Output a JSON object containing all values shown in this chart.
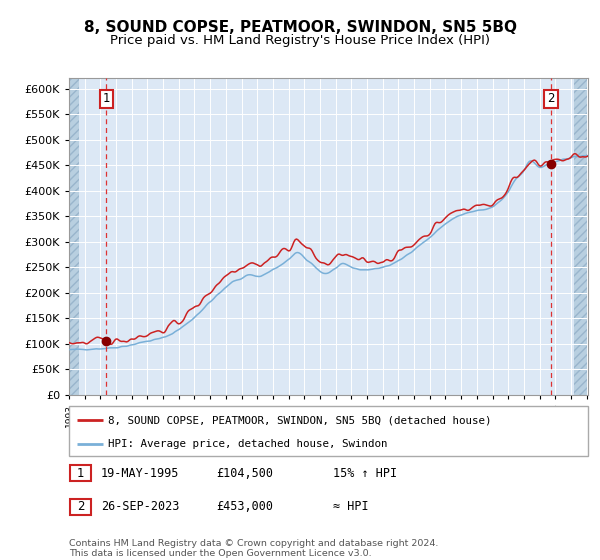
{
  "title": "8, SOUND COPSE, PEATMOOR, SWINDON, SN5 5BQ",
  "subtitle": "Price paid vs. HM Land Registry's House Price Index (HPI)",
  "sale1_date": "1995-05-19",
  "sale1_price": 104500,
  "sale2_date": "2023-09-26",
  "sale2_price": 453000,
  "legend1": "8, SOUND COPSE, PEATMOOR, SWINDON, SN5 5BQ (detached house)",
  "legend2": "HPI: Average price, detached house, Swindon",
  "ann1_date": "19-MAY-1995",
  "ann1_price": "£104,500",
  "ann1_note": "15% ↑ HPI",
  "ann2_date": "26-SEP-2023",
  "ann2_price": "£453,000",
  "ann2_note": "≈ HPI",
  "footer": "Contains HM Land Registry data © Crown copyright and database right 2024.\nThis data is licensed under the Open Government Licence v3.0.",
  "hpi_color": "#7ab0d8",
  "price_color": "#cc2222",
  "dot_color": "#880000",
  "plot_bg": "#dce8f5",
  "grid_color": "#ffffff",
  "ylim": [
    0,
    620000
  ],
  "ytick_step": 50000
}
